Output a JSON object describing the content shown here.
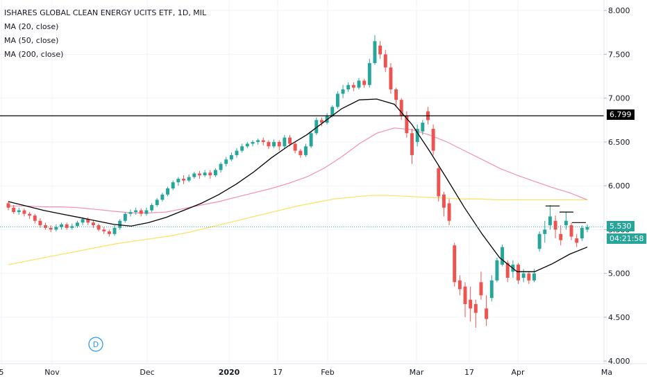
{
  "legend": {
    "title": "ISHARES GLOBAL CLEAN ENERGY UCITS ETF, 1D, MIL",
    "ma20": "MA (20, close)",
    "ma50": "MA (50, close)",
    "ma200": "MA (200, close)"
  },
  "price_axis": {
    "ticks": [
      "8.000",
      "7.500",
      "7.000",
      "6.500",
      "6.000",
      "5.500",
      "5.000",
      "4.500",
      "4.000"
    ],
    "hline_label": "6.799",
    "last_label": "5.530",
    "countdown": "04:21:58"
  },
  "time_axis": {
    "labels": [
      "5",
      "Nov",
      "Dec",
      "2020",
      "17",
      "Feb",
      "Mar",
      "17",
      "Apr",
      "Ma"
    ]
  },
  "marker": {
    "label": "D"
  },
  "colors": {
    "up": "#26a69a",
    "down": "#ef5350",
    "ma20": "#000000",
    "ma50": "#f48fb1",
    "ma200": "#f9e46b",
    "hline": "#000000",
    "last": "#26a69a"
  },
  "chart_data": {
    "type": "candlestick",
    "title": "ISHARES GLOBAL CLEAN ENERGY UCITS ETF, 1D, MIL",
    "ylim": [
      3.97,
      8.12
    ],
    "horizontal_line": 6.799,
    "last_price": 5.53,
    "series": [
      {
        "name": "MA (20, close)",
        "values": [
          5.82,
          5.77,
          5.72,
          5.68,
          5.64,
          5.6,
          5.56,
          5.54,
          5.58,
          5.64,
          5.72,
          5.8,
          5.9,
          6.02,
          6.16,
          6.32,
          6.46,
          6.58,
          6.73,
          6.88,
          6.98,
          6.99,
          6.93,
          6.7,
          6.4,
          6.08,
          5.75,
          5.45,
          5.18,
          5.02,
          5.02,
          5.11,
          5.22,
          5.3
        ]
      },
      {
        "name": "MA (50, close)",
        "values": [
          5.77,
          5.77,
          5.76,
          5.76,
          5.75,
          5.73,
          5.71,
          5.69,
          5.69,
          5.7,
          5.74,
          5.78,
          5.82,
          5.87,
          5.92,
          5.97,
          6.03,
          6.1,
          6.2,
          6.33,
          6.48,
          6.6,
          6.66,
          6.64,
          6.58,
          6.5,
          6.4,
          6.3,
          6.2,
          6.12,
          6.05,
          5.98,
          5.92,
          5.84
        ]
      },
      {
        "name": "MA (200, close)",
        "values": [
          5.1,
          5.14,
          5.18,
          5.22,
          5.26,
          5.3,
          5.34,
          5.37,
          5.4,
          5.43,
          5.47,
          5.52,
          5.57,
          5.62,
          5.67,
          5.72,
          5.77,
          5.81,
          5.85,
          5.87,
          5.89,
          5.89,
          5.88,
          5.87,
          5.86,
          5.85,
          5.85,
          5.84,
          5.84,
          5.84,
          5.84,
          5.84,
          5.84
        ]
      }
    ],
    "candles": [
      [
        5.8,
        5.75,
        5.82,
        5.72
      ],
      [
        5.75,
        5.7,
        5.78,
        5.68
      ],
      [
        5.7,
        5.72,
        5.75,
        5.67
      ],
      [
        5.72,
        5.68,
        5.74,
        5.65
      ],
      [
        5.68,
        5.66,
        5.7,
        5.62
      ],
      [
        5.66,
        5.6,
        5.68,
        5.57
      ],
      [
        5.6,
        5.55,
        5.63,
        5.52
      ],
      [
        5.55,
        5.52,
        5.58,
        5.5
      ],
      [
        5.52,
        5.5,
        5.55,
        5.47
      ],
      [
        5.5,
        5.53,
        5.56,
        5.48
      ],
      [
        5.53,
        5.56,
        5.58,
        5.5
      ],
      [
        5.56,
        5.52,
        5.58,
        5.5
      ],
      [
        5.52,
        5.54,
        5.57,
        5.5
      ],
      [
        5.54,
        5.58,
        5.6,
        5.52
      ],
      [
        5.58,
        5.62,
        5.64,
        5.55
      ],
      [
        5.62,
        5.58,
        5.64,
        5.55
      ],
      [
        5.58,
        5.55,
        5.6,
        5.52
      ],
      [
        5.55,
        5.5,
        5.57,
        5.48
      ],
      [
        5.5,
        5.48,
        5.53,
        5.45
      ],
      [
        5.48,
        5.45,
        5.5,
        5.42
      ],
      [
        5.45,
        5.52,
        5.55,
        5.43
      ],
      [
        5.52,
        5.6,
        5.62,
        5.5
      ],
      [
        5.6,
        5.68,
        5.7,
        5.58
      ],
      [
        5.68,
        5.7,
        5.73,
        5.65
      ],
      [
        5.7,
        5.72,
        5.75,
        5.67
      ],
      [
        5.72,
        5.68,
        5.74,
        5.65
      ],
      [
        5.68,
        5.72,
        5.75,
        5.66
      ],
      [
        5.72,
        5.78,
        5.8,
        5.7
      ],
      [
        5.78,
        5.84,
        5.86,
        5.76
      ],
      [
        5.84,
        5.9,
        5.92,
        5.82
      ],
      [
        5.9,
        5.97,
        5.99,
        5.88
      ],
      [
        5.97,
        6.04,
        6.06,
        5.95
      ],
      [
        6.04,
        6.08,
        6.1,
        6.0
      ],
      [
        6.08,
        6.06,
        6.12,
        6.02
      ],
      [
        6.06,
        6.1,
        6.13,
        6.04
      ],
      [
        6.1,
        6.14,
        6.16,
        6.08
      ],
      [
        6.14,
        6.12,
        6.17,
        6.08
      ],
      [
        6.12,
        6.15,
        6.18,
        6.1
      ],
      [
        6.15,
        6.12,
        6.18,
        6.08
      ],
      [
        6.12,
        6.18,
        6.2,
        6.1
      ],
      [
        6.18,
        6.25,
        6.27,
        6.15
      ],
      [
        6.25,
        6.3,
        6.33,
        6.22
      ],
      [
        6.3,
        6.35,
        6.38,
        6.28
      ],
      [
        6.35,
        6.4,
        6.43,
        6.32
      ],
      [
        6.4,
        6.45,
        6.48,
        6.38
      ],
      [
        6.45,
        6.48,
        6.5,
        6.43
      ],
      [
        6.48,
        6.5,
        6.52,
        6.45
      ],
      [
        6.5,
        6.52,
        6.54,
        6.47
      ],
      [
        6.52,
        6.5,
        6.55,
        6.46
      ],
      [
        6.5,
        6.45,
        6.52,
        6.42
      ],
      [
        6.45,
        6.5,
        6.53,
        6.43
      ],
      [
        6.5,
        6.45,
        6.52,
        6.4
      ],
      [
        6.45,
        6.55,
        6.58,
        6.43
      ],
      [
        6.55,
        6.48,
        6.58,
        6.45
      ],
      [
        6.48,
        6.4,
        6.5,
        6.37
      ],
      [
        6.4,
        6.35,
        6.42,
        6.32
      ],
      [
        6.35,
        6.45,
        6.48,
        6.33
      ],
      [
        6.45,
        6.6,
        6.62,
        6.43
      ],
      [
        6.6,
        6.75,
        6.78,
        6.58
      ],
      [
        6.75,
        6.72,
        6.78,
        6.68
      ],
      [
        6.72,
        6.8,
        6.83,
        6.7
      ],
      [
        6.8,
        6.9,
        6.92,
        6.78
      ],
      [
        6.9,
        7.05,
        7.08,
        6.88
      ],
      [
        7.05,
        7.1,
        7.15,
        7.0
      ],
      [
        7.1,
        7.15,
        7.18,
        7.07
      ],
      [
        7.15,
        7.12,
        7.18,
        7.08
      ],
      [
        7.12,
        7.2,
        7.23,
        7.1
      ],
      [
        7.2,
        7.15,
        7.22,
        7.12
      ],
      [
        7.15,
        7.4,
        7.45,
        7.12
      ],
      [
        7.4,
        7.65,
        7.72,
        7.38
      ],
      [
        7.6,
        7.5,
        7.65,
        7.45
      ],
      [
        7.5,
        7.35,
        7.55,
        7.3
      ],
      [
        7.35,
        7.1,
        7.4,
        7.05
      ],
      [
        7.1,
        6.98,
        7.12,
        6.9
      ],
      [
        6.98,
        6.8,
        7.0,
        6.75
      ],
      [
        6.8,
        6.6,
        6.85,
        6.55
      ],
      [
        6.6,
        6.35,
        6.65,
        6.25
      ],
      [
        6.5,
        6.65,
        6.7,
        6.45
      ],
      [
        6.62,
        6.72,
        6.75,
        6.58
      ],
      [
        6.85,
        6.75,
        6.9,
        6.7
      ],
      [
        6.65,
        6.4,
        6.7,
        6.35
      ],
      [
        6.2,
        5.88,
        6.22,
        5.82
      ],
      [
        5.9,
        5.75,
        5.93,
        5.65
      ],
      [
        5.8,
        5.6,
        5.85,
        5.55
      ],
      [
        5.32,
        4.9,
        5.35,
        4.85
      ],
      [
        4.92,
        4.82,
        4.98,
        4.75
      ],
      [
        4.85,
        4.65,
        4.9,
        4.5
      ],
      [
        4.7,
        4.6,
        4.85,
        4.45
      ],
      [
        4.65,
        4.55,
        4.7,
        4.38
      ],
      [
        4.9,
        4.75,
        5.02,
        4.7
      ],
      [
        4.6,
        4.48,
        4.75,
        4.4
      ],
      [
        4.72,
        4.92,
        4.98,
        4.68
      ],
      [
        4.92,
        5.15,
        5.18,
        4.9
      ],
      [
        5.1,
        5.3,
        5.33,
        5.08
      ],
      [
        5.12,
        4.95,
        5.15,
        4.9
      ],
      [
        5.02,
        5.1,
        5.15,
        4.95
      ],
      [
        5.1,
        4.92,
        5.12,
        4.88
      ],
      [
        4.95,
        5.0,
        5.05,
        4.9
      ],
      [
        5.0,
        4.92,
        5.02,
        4.88
      ],
      [
        4.92,
        5.0,
        5.05,
        4.9
      ],
      [
        5.28,
        5.45,
        5.48,
        5.25
      ],
      [
        5.45,
        5.5,
        5.6,
        5.35
      ],
      [
        5.55,
        5.65,
        5.78,
        5.5
      ],
      [
        5.6,
        5.5,
        5.66,
        5.4
      ],
      [
        5.45,
        5.38,
        5.55,
        5.32
      ],
      [
        5.55,
        5.6,
        5.7,
        5.5
      ],
      [
        5.55,
        5.42,
        5.58,
        5.38
      ],
      [
        5.4,
        5.35,
        5.45,
        5.3
      ],
      [
        5.4,
        5.52,
        5.55,
        5.37
      ],
      [
        5.5,
        5.53,
        5.56,
        5.47
      ]
    ]
  }
}
